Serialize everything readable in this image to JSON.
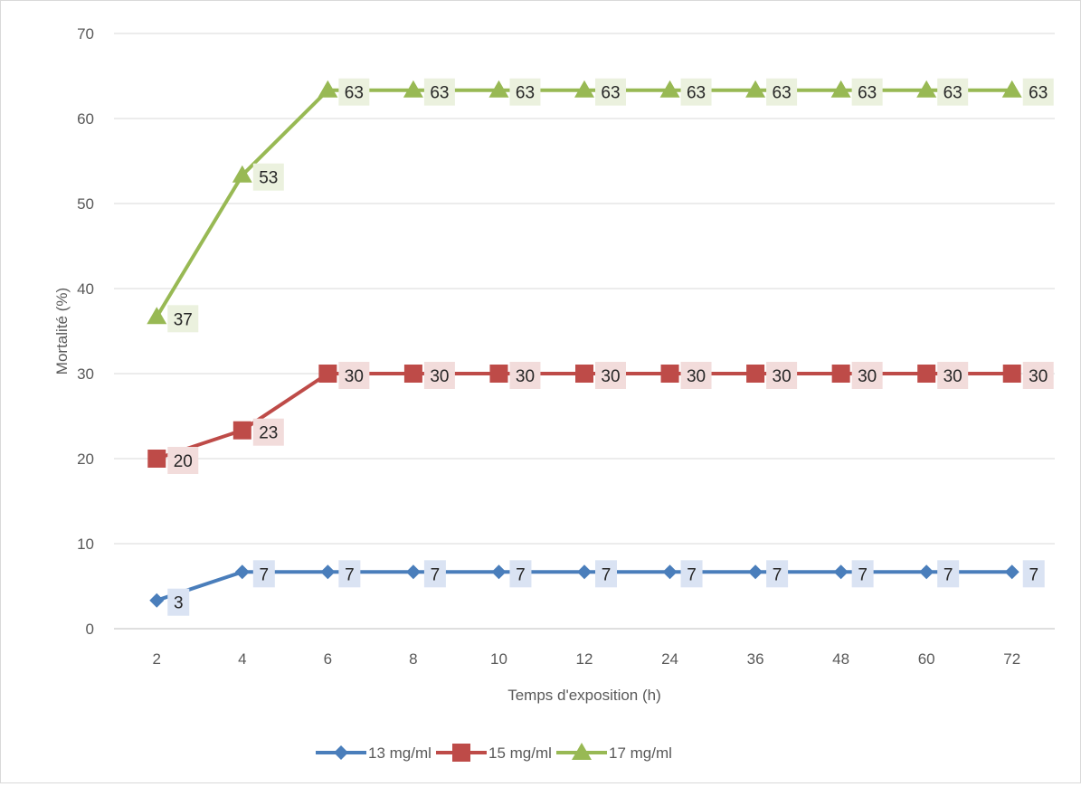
{
  "chart_data": {
    "type": "line",
    "title": "",
    "xlabel": "Temps d'exposition (h)",
    "ylabel": "Mortalité (%)",
    "categories": [
      "2",
      "4",
      "6",
      "8",
      "10",
      "12",
      "24",
      "36",
      "48",
      "60",
      "72"
    ],
    "ylim": [
      0,
      70
    ],
    "yticks": [
      0,
      10,
      20,
      30,
      40,
      50,
      60,
      70
    ],
    "grid": "horizontal",
    "legend_position": "bottom",
    "series": [
      {
        "name": "13 mg/ml",
        "values": [
          3.33,
          6.67,
          6.67,
          6.67,
          6.67,
          6.67,
          6.67,
          6.67,
          6.67,
          6.67,
          6.67
        ],
        "labels": [
          "3",
          "7",
          "7",
          "7",
          "7",
          "7",
          "7",
          "7",
          "7",
          "7",
          "7"
        ],
        "color": "#4a7ebb",
        "label_bg": "#dae3f3",
        "marker": "diamond"
      },
      {
        "name": "15 mg/ml",
        "values": [
          20,
          23.33,
          30,
          30,
          30,
          30,
          30,
          30,
          30,
          30,
          30
        ],
        "labels": [
          "20",
          "23",
          "30",
          "30",
          "30",
          "30",
          "30",
          "30",
          "30",
          "30",
          "30"
        ],
        "color": "#be4b48",
        "label_bg": "#f2dcdb",
        "marker": "square"
      },
      {
        "name": "17 mg/ml",
        "values": [
          36.67,
          53.33,
          63.33,
          63.33,
          63.33,
          63.33,
          63.33,
          63.33,
          63.33,
          63.33,
          63.33
        ],
        "labels": [
          "37",
          "53",
          "63",
          "63",
          "63",
          "63",
          "63",
          "63",
          "63",
          "63",
          "63"
        ],
        "color": "#98b954",
        "label_bg": "#ebf1de",
        "marker": "triangle"
      }
    ]
  }
}
